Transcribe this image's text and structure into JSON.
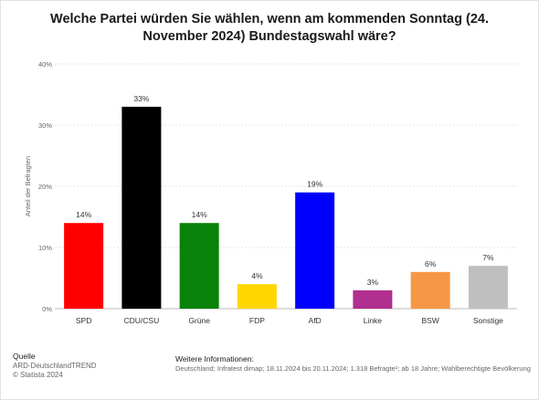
{
  "title": "Welche Partei würden Sie wählen, wenn am kommenden Sonntag (24. November 2024) Bundestagswahl wäre?",
  "footer": {
    "source_heading": "Quelle",
    "source_name": "ARD-DeutschlandTREND",
    "copyright": "© Statista 2024",
    "info_heading": "Weitere Informationen:",
    "info_text": "Deutschland; Infratest dimap; 18.11.2024 bis 20.11.2024; 1.318 Befragte¹; ab 18 Jahre; Wahlberechtigte Bevölkerung"
  },
  "chart_data": {
    "type": "bar",
    "ylabel": "Anteil der Befragten",
    "xlabel": "",
    "ylim": [
      0,
      40
    ],
    "yticks": [
      0,
      10,
      20,
      30,
      40
    ],
    "ytick_labels": [
      "0%",
      "10%",
      "20%",
      "30%",
      "40%"
    ],
    "value_suffix": "%",
    "grid": true,
    "categories": [
      "SPD",
      "CDU/CSU",
      "Grüne",
      "FDP",
      "AfD",
      "Linke",
      "BSW",
      "Sonstige"
    ],
    "values": [
      14,
      33,
      14,
      4,
      19,
      3,
      6,
      7
    ],
    "colors": [
      "#ff0000",
      "#000000",
      "#088208",
      "#ffd600",
      "#0000ff",
      "#b02f8f",
      "#f79646",
      "#bfbfbf"
    ]
  }
}
